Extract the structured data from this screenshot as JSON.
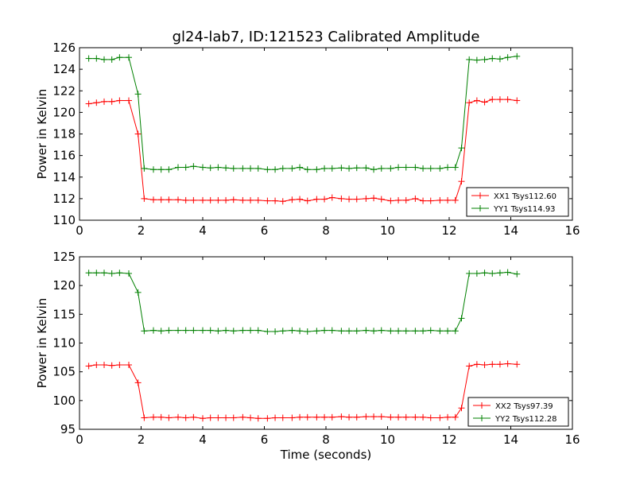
{
  "chart_data": [
    {
      "type": "line",
      "title": "gl24-lab7, ID:121523 Calibrated Amplitude",
      "xlabel": "",
      "ylabel": "Power in Kelvin",
      "xlim": [
        0,
        16
      ],
      "ylim": [
        110,
        126
      ],
      "xticks": [
        "0",
        "2",
        "4",
        "6",
        "8",
        "10",
        "12",
        "14",
        "16"
      ],
      "yticks": [
        "110",
        "112",
        "114",
        "116",
        "118",
        "120",
        "122",
        "124",
        "126"
      ],
      "grid": false,
      "legend_position": "bottom-right",
      "x": [
        0.3,
        0.55,
        0.8,
        1.05,
        1.3,
        1.6,
        1.9,
        2.1,
        2.4,
        2.65,
        2.9,
        3.2,
        3.45,
        3.7,
        4.0,
        4.25,
        4.5,
        4.75,
        5.0,
        5.3,
        5.55,
        5.8,
        6.1,
        6.35,
        6.6,
        6.9,
        7.15,
        7.4,
        7.7,
        7.95,
        8.2,
        8.5,
        8.75,
        9.0,
        9.3,
        9.55,
        9.8,
        10.1,
        10.35,
        10.6,
        10.9,
        11.15,
        11.4,
        11.7,
        11.95,
        12.2,
        12.4,
        12.65,
        12.9,
        13.15,
        13.4,
        13.65,
        13.9,
        14.2
      ],
      "series": [
        {
          "name": "XX1 Tsys112.60",
          "color": "#ff0000",
          "values": [
            120.8,
            120.9,
            121.0,
            121.0,
            121.1,
            121.1,
            118.0,
            112.0,
            111.9,
            111.9,
            111.9,
            111.9,
            111.85,
            111.85,
            111.85,
            111.85,
            111.85,
            111.85,
            111.9,
            111.85,
            111.85,
            111.85,
            111.8,
            111.8,
            111.75,
            111.9,
            111.95,
            111.8,
            111.95,
            111.95,
            112.1,
            112.0,
            111.95,
            111.95,
            112.0,
            112.05,
            111.95,
            111.8,
            111.85,
            111.85,
            112.0,
            111.8,
            111.8,
            111.85,
            111.85,
            111.85,
            113.6,
            120.9,
            121.1,
            120.95,
            121.2,
            121.2,
            121.2,
            121.1
          ]
        },
        {
          "name": "YY1 Tsys114.93",
          "color": "#008000",
          "values": [
            125.0,
            125.0,
            124.9,
            124.9,
            125.1,
            125.1,
            121.7,
            114.8,
            114.7,
            114.7,
            114.7,
            114.9,
            114.9,
            115.0,
            114.9,
            114.85,
            114.9,
            114.85,
            114.8,
            114.8,
            114.8,
            114.8,
            114.7,
            114.7,
            114.8,
            114.8,
            114.9,
            114.7,
            114.7,
            114.8,
            114.8,
            114.85,
            114.8,
            114.85,
            114.85,
            114.7,
            114.8,
            114.8,
            114.9,
            114.9,
            114.9,
            114.8,
            114.8,
            114.8,
            114.9,
            114.9,
            116.7,
            124.9,
            124.85,
            124.9,
            125.0,
            124.95,
            125.1,
            125.2
          ]
        }
      ]
    },
    {
      "type": "line",
      "title": "",
      "xlabel": "Time (seconds)",
      "ylabel": "Power in Kelvin",
      "xlim": [
        0,
        16
      ],
      "ylim": [
        95,
        125
      ],
      "xticks": [
        "0",
        "2",
        "4",
        "6",
        "8",
        "10",
        "12",
        "14",
        "16"
      ],
      "yticks": [
        "95",
        "100",
        "105",
        "110",
        "115",
        "120",
        "125"
      ],
      "grid": false,
      "legend_position": "bottom-right",
      "x": [
        0.3,
        0.55,
        0.8,
        1.05,
        1.3,
        1.6,
        1.9,
        2.1,
        2.4,
        2.65,
        2.9,
        3.2,
        3.45,
        3.7,
        4.0,
        4.25,
        4.5,
        4.75,
        5.0,
        5.3,
        5.55,
        5.8,
        6.1,
        6.35,
        6.6,
        6.9,
        7.15,
        7.4,
        7.7,
        7.95,
        8.2,
        8.5,
        8.75,
        9.0,
        9.3,
        9.55,
        9.8,
        10.1,
        10.35,
        10.6,
        10.9,
        11.15,
        11.4,
        11.7,
        11.95,
        12.2,
        12.4,
        12.65,
        12.9,
        13.15,
        13.4,
        13.65,
        13.9,
        14.2
      ],
      "series": [
        {
          "name": "XX2 Tsys97.39",
          "color": "#ff0000",
          "values": [
            106.0,
            106.2,
            106.2,
            106.1,
            106.2,
            106.2,
            103.1,
            97.0,
            97.1,
            97.1,
            97.0,
            97.1,
            97.0,
            97.1,
            96.9,
            97.0,
            97.0,
            97.0,
            97.0,
            97.1,
            97.0,
            96.9,
            96.9,
            97.0,
            97.0,
            97.0,
            97.1,
            97.1,
            97.1,
            97.1,
            97.1,
            97.2,
            97.1,
            97.1,
            97.2,
            97.2,
            97.2,
            97.1,
            97.1,
            97.1,
            97.1,
            97.1,
            97.0,
            97.0,
            97.1,
            97.1,
            98.7,
            106.0,
            106.3,
            106.2,
            106.3,
            106.3,
            106.4,
            106.3
          ]
        },
        {
          "name": "YY2 Tsys112.28",
          "color": "#008000",
          "values": [
            122.2,
            122.2,
            122.2,
            122.1,
            122.2,
            122.1,
            118.8,
            112.1,
            112.2,
            112.1,
            112.2,
            112.2,
            112.2,
            112.2,
            112.2,
            112.2,
            112.1,
            112.2,
            112.1,
            112.2,
            112.2,
            112.2,
            112.0,
            112.0,
            112.1,
            112.2,
            112.1,
            112.0,
            112.1,
            112.2,
            112.2,
            112.1,
            112.1,
            112.1,
            112.2,
            112.1,
            112.2,
            112.1,
            112.1,
            112.1,
            112.1,
            112.1,
            112.2,
            112.1,
            112.1,
            112.1,
            114.3,
            122.1,
            122.1,
            122.2,
            122.1,
            122.2,
            122.3,
            122.0
          ]
        }
      ]
    }
  ]
}
